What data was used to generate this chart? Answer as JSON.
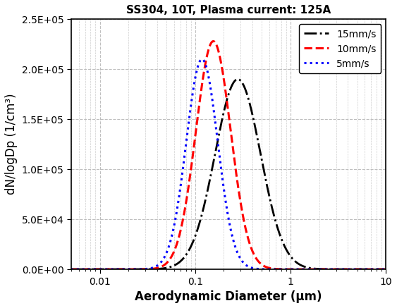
{
  "title": "SS304, 10T, Plasma current: 125A",
  "xlabel": "Aerodynamic Diameter (μm)",
  "ylabel": "dN/logDp (1/cm³)",
  "xlim": [
    0.005,
    10
  ],
  "ylim": [
    0,
    250001
  ],
  "yticks": [
    0,
    50000,
    100000,
    150000,
    200000,
    250000
  ],
  "ytick_labels": [
    "0.0E+00",
    "5.0E+04",
    "1.0E+05",
    "1.5E+05",
    "2.0E+05",
    "2.5E+05"
  ],
  "curves": [
    {
      "label": "15mm/s",
      "color": "black",
      "linestyle": "-.",
      "linewidth": 2.0,
      "peak_x": 0.28,
      "peak_y": 190000,
      "sigma": 0.55
    },
    {
      "label": "10mm/s",
      "color": "red",
      "linestyle": "--",
      "linewidth": 2.2,
      "peak_x": 0.155,
      "peak_y": 228000,
      "sigma": 0.42
    },
    {
      "label": "5mm/s",
      "color": "blue",
      "linestyle": ":",
      "linewidth": 2.2,
      "peak_x": 0.118,
      "peak_y": 210000,
      "sigma": 0.38
    }
  ],
  "legend_loc": "upper right",
  "grid_color": "#b8b8b8",
  "background_color": "white",
  "title_fontsize": 11,
  "label_fontsize": 12,
  "tick_fontsize": 10,
  "legend_fontsize": 10
}
